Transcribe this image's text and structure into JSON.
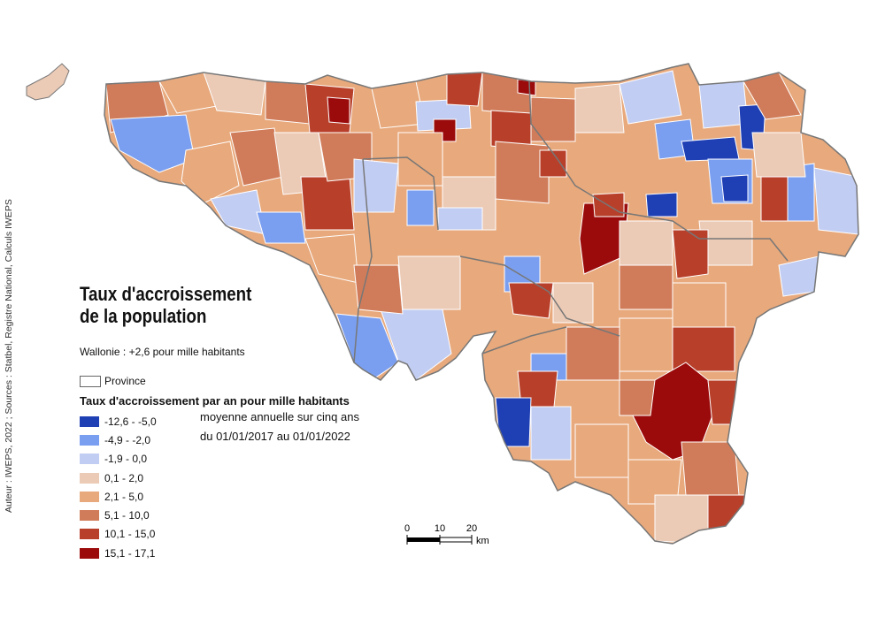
{
  "credit": "Auteur : IWEPS, 2022 ; Sources : Statbel, Registre National, Calculs IWEPS",
  "title": "Taux d'accroissement de la population",
  "subtitle": "Wallonie : +2,6 pour mille habitants",
  "province_label": "Province",
  "legend": {
    "title": "Taux d'accroissement par an pour mille habitants",
    "note1": "moyenne annuelle sur cinq ans",
    "note2": "du 01/01/2017 au 01/01/2022",
    "classes": [
      {
        "label": "-12,6 - -5,0",
        "color": "#1f3fb5"
      },
      {
        "label": "-4,9 - -2,0",
        "color": "#7b9ff0"
      },
      {
        "label": "-1,9 - 0,0",
        "color": "#c2cdf3"
      },
      {
        "label": "0,1 - 2,0",
        "color": "#ebcab6"
      },
      {
        "label": "2,1 - 5,0",
        "color": "#e8a97c"
      },
      {
        "label": "5,1 - 10,0",
        "color": "#d07c5a"
      },
      {
        "label": "10,1 - 15,0",
        "color": "#b8402b"
      },
      {
        "label": "15,1 - 17,1",
        "color": "#9b0b0b"
      }
    ]
  },
  "scale": {
    "ticks": [
      "0",
      "10",
      "20"
    ],
    "unit": "km"
  },
  "colors": {
    "province_border": "#777777",
    "commune_border": "#ffffff"
  }
}
